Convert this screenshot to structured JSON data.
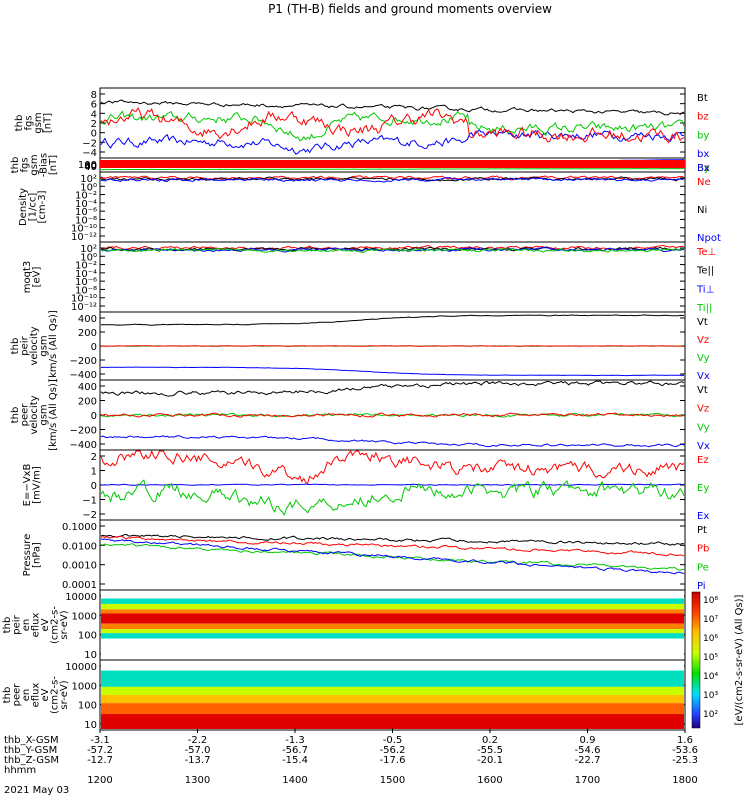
{
  "title": "P1 (TH-B) fields and ground moments overview",
  "chart_data": {
    "type": "line",
    "x_ticks": [
      "1200",
      "1300",
      "1400",
      "1500",
      "1600",
      "1700",
      "1800"
    ],
    "x_range": [
      "1200",
      "1800"
    ],
    "x_header_labels": [
      "thb_X-GSM",
      "thb_Y-GSM",
      "thb_Z-GSM",
      "hhmm"
    ],
    "x_rows": [
      [
        "-3.1",
        "-2.2",
        "-1.3",
        "-0.5",
        "0.2",
        "0.9",
        "1.6"
      ],
      [
        "-57.2",
        "-57.0",
        "-56.7",
        "-56.2",
        "-55.5",
        "-54.6",
        "-53.6"
      ],
      [
        "-12.7",
        "-13.7",
        "-15.4",
        "-17.6",
        "-20.1",
        "-22.7",
        "-25.3"
      ]
    ],
    "date": "2021 May 03",
    "panels": [
      {
        "ylabel": [
          "thb",
          "fgs",
          "gsm",
          "[nT]"
        ],
        "yticks": [
          "8",
          "6",
          "4",
          "2",
          "0",
          "−2",
          "−4"
        ],
        "ylim": [
          -5,
          9
        ],
        "series": [
          {
            "name": "Bt",
            "color": "#000000"
          },
          {
            "name": "bz",
            "color": "#ff0000"
          },
          {
            "name": "by",
            "color": "#00c800"
          },
          {
            "name": "bx",
            "color": "#0000ff"
          }
        ]
      },
      {
        "ylabel": [
          "thb",
          "fgs",
          "gsm",
          "-Bias",
          "[nT]"
        ],
        "yticks": [
          "100",
          "80",
          "60",
          "40"
        ],
        "ylim": [
          30,
          102
        ],
        "series": [
          {
            "name": "Bz",
            "color": "#ff0000"
          },
          {
            "name": "By",
            "color": "#00c800"
          },
          {
            "name": "Bx",
            "color": "#0000ff"
          }
        ]
      },
      {
        "ylabel": [
          "Density",
          "[1/cc]",
          "[cm-3]"
        ],
        "yticks": [
          "10²",
          "10⁰",
          "10⁻²",
          "10⁻⁴",
          "10⁻⁶",
          "10⁻⁸",
          "10⁻¹⁰",
          "10⁻¹²"
        ],
        "series": [
          {
            "name": "Ne",
            "color": "#ff0000"
          },
          {
            "name": "Ni",
            "color": "#000000"
          },
          {
            "name": "Npot",
            "color": "#0000ff"
          }
        ]
      },
      {
        "ylabel": [
          "moqt3",
          "[eV]"
        ],
        "yticks": [
          "10²",
          "10⁰",
          "10⁻²",
          "10⁻⁴",
          "10⁻⁶",
          "10⁻⁸",
          "10⁻¹⁰",
          "10⁻¹²"
        ],
        "series": [
          {
            "name": "Te⊥",
            "color": "#ff0000"
          },
          {
            "name": "Te||",
            "color": "#000000"
          },
          {
            "name": "Ti⊥",
            "color": "#0000ff"
          },
          {
            "name": "Ti||",
            "color": "#00c800"
          }
        ]
      },
      {
        "ylabel": [
          "thb",
          "peir",
          "velocity",
          "gsm",
          "[km/s (All Qs)]"
        ],
        "yticks": [
          "400",
          "200",
          "0",
          "−200",
          "−400"
        ],
        "ylim": [
          -480,
          480
        ],
        "series": [
          {
            "name": "Vt",
            "color": "#000000"
          },
          {
            "name": "Vz",
            "color": "#ff0000"
          },
          {
            "name": "Vy",
            "color": "#00c800"
          },
          {
            "name": "Vx",
            "color": "#0000ff"
          }
        ]
      },
      {
        "ylabel": [
          "thb",
          "peer",
          "velocity",
          "gsm",
          "[km/s (All Qs)]"
        ],
        "yticks": [
          "400",
          "200",
          "0",
          "−200",
          "−400"
        ],
        "ylim": [
          -480,
          480
        ],
        "series": [
          {
            "name": "Vt",
            "color": "#000000"
          },
          {
            "name": "Vz",
            "color": "#ff0000"
          },
          {
            "name": "Vy",
            "color": "#00c800"
          },
          {
            "name": "Vx",
            "color": "#0000ff"
          }
        ]
      },
      {
        "ylabel": [
          "E=−VxB",
          "[mV/m]"
        ],
        "yticks": [
          "2",
          "1",
          "0",
          "−1",
          "−2"
        ],
        "ylim": [
          -2.7,
          2.7
        ],
        "series": [
          {
            "name": "Ez",
            "color": "#ff0000"
          },
          {
            "name": "Ey",
            "color": "#00c800"
          },
          {
            "name": "Ex",
            "color": "#0000ff"
          }
        ]
      },
      {
        "ylabel": [
          "Pressure",
          "[nPa]"
        ],
        "yticks": [
          "0.1000",
          "0.0100",
          "0.0010",
          "0.0001"
        ],
        "series": [
          {
            "name": "Pt",
            "color": "#000000"
          },
          {
            "name": "Pb",
            "color": "#ff0000"
          },
          {
            "name": "Pe",
            "color": "#00c800"
          },
          {
            "name": "Pi",
            "color": "#0000ff"
          }
        ]
      },
      {
        "ylabel": [
          "thb",
          "peir",
          "en",
          "eflux",
          "eV",
          "(cm2-s-",
          "sr-eV)"
        ],
        "yticks": [
          "10000",
          "1000",
          "100",
          "10"
        ],
        "type": "heatmap"
      },
      {
        "ylabel": [
          "thb",
          "peer",
          "en",
          "eflux",
          "eV",
          "(cm2-s-",
          "sr-eV)"
        ],
        "yticks": [
          "10000",
          "1000",
          "100",
          "10"
        ],
        "type": "heatmap"
      }
    ],
    "colorbar": {
      "label": "[eV/(cm2-s-sr-eV) (All Qs)]",
      "ticks": [
        "10⁸",
        "10⁷",
        "10⁶",
        "10⁵",
        "10⁴",
        "10³",
        "10²"
      ]
    }
  }
}
